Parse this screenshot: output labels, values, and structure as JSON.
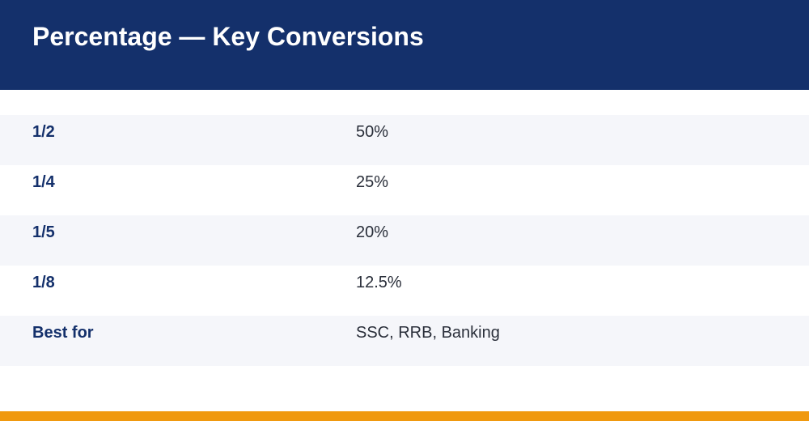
{
  "header": {
    "title": "Percentage — Key Conversions"
  },
  "table": {
    "rows": [
      {
        "key": "1/2",
        "value": "50%"
      },
      {
        "key": "1/4",
        "value": "25%"
      },
      {
        "key": "1/5",
        "value": "20%"
      },
      {
        "key": "1/8",
        "value": "12.5%"
      },
      {
        "key": "Best for",
        "value": "SSC, RRB, Banking"
      }
    ]
  },
  "colors": {
    "header_background": "#14306b",
    "row_alt_background": "#f5f6fa",
    "key_text": "#14306b",
    "value_text": "#2a2f3a",
    "accent_bar": "#f0990f"
  }
}
